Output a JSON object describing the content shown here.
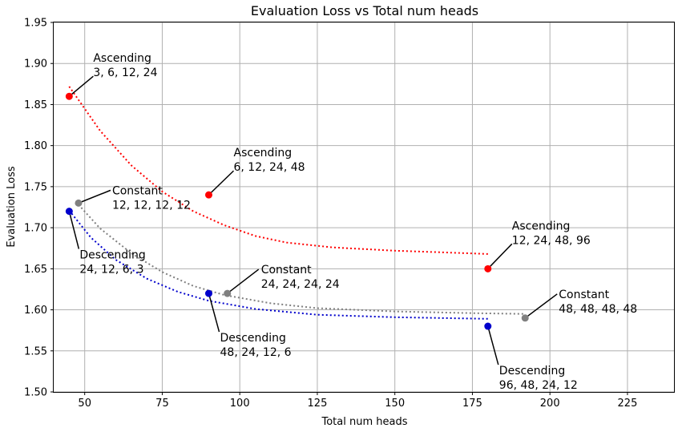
{
  "chart_data": {
    "type": "scatter",
    "title": "Evaluation Loss vs Total num heads",
    "xlabel": "Total num heads",
    "ylabel": "Evaluation Loss",
    "xlim": [
      40,
      240
    ],
    "ylim": [
      1.5,
      1.95
    ],
    "xticks": [
      50,
      75,
      100,
      125,
      150,
      175,
      200,
      225
    ],
    "yticks": [
      1.5,
      1.55,
      1.6,
      1.65,
      1.7,
      1.75,
      1.8,
      1.85,
      1.9,
      1.95
    ],
    "grid": true,
    "series": [
      {
        "color": "#ff0000",
        "points": [
          {
            "x": 45,
            "y": 1.86,
            "label": [
              "Ascending",
              "3, 6, 12, 24"
            ]
          },
          {
            "x": 90,
            "y": 1.74,
            "label": [
              "Ascending",
              "6, 12, 24, 48"
            ]
          },
          {
            "x": 180,
            "y": 1.65,
            "label": [
              "Ascending",
              "12, 24, 48, 96"
            ]
          }
        ],
        "fit": [
          {
            "x": 45,
            "y": 1.872
          },
          {
            "x": 55,
            "y": 1.818
          },
          {
            "x": 65,
            "y": 1.776
          },
          {
            "x": 75,
            "y": 1.744
          },
          {
            "x": 85,
            "y": 1.72
          },
          {
            "x": 95,
            "y": 1.703
          },
          {
            "x": 105,
            "y": 1.69
          },
          {
            "x": 115,
            "y": 1.682
          },
          {
            "x": 130,
            "y": 1.676
          },
          {
            "x": 150,
            "y": 1.672
          },
          {
            "x": 165,
            "y": 1.67
          },
          {
            "x": 180,
            "y": 1.668
          }
        ]
      },
      {
        "color": "#808080",
        "points": [
          {
            "x": 48,
            "y": 1.73,
            "label": [
              "Constant",
              "12, 12, 12, 12"
            ]
          },
          {
            "x": 96,
            "y": 1.62,
            "label": [
              "Constant",
              "24, 24, 24, 24"
            ]
          },
          {
            "x": 192,
            "y": 1.59,
            "label": [
              "Constant",
              "48, 48, 48, 48"
            ]
          }
        ],
        "fit": [
          {
            "x": 48,
            "y": 1.728
          },
          {
            "x": 55,
            "y": 1.699
          },
          {
            "x": 65,
            "y": 1.669
          },
          {
            "x": 75,
            "y": 1.646
          },
          {
            "x": 85,
            "y": 1.629
          },
          {
            "x": 95,
            "y": 1.618
          },
          {
            "x": 110,
            "y": 1.608
          },
          {
            "x": 125,
            "y": 1.602
          },
          {
            "x": 150,
            "y": 1.598
          },
          {
            "x": 175,
            "y": 1.596
          },
          {
            "x": 192,
            "y": 1.595
          }
        ]
      },
      {
        "color": "#0000cc",
        "points": [
          {
            "x": 45,
            "y": 1.72,
            "label": [
              "Descending",
              "24, 12, 6, 3"
            ]
          },
          {
            "x": 90,
            "y": 1.62,
            "label": [
              "Descending",
              "48, 24, 12, 6"
            ]
          },
          {
            "x": 180,
            "y": 1.58,
            "label": [
              "Descending",
              "96, 48, 24, 12"
            ]
          }
        ],
        "fit": [
          {
            "x": 45,
            "y": 1.721
          },
          {
            "x": 52,
            "y": 1.688
          },
          {
            "x": 60,
            "y": 1.661
          },
          {
            "x": 70,
            "y": 1.638
          },
          {
            "x": 80,
            "y": 1.622
          },
          {
            "x": 90,
            "y": 1.611
          },
          {
            "x": 105,
            "y": 1.601
          },
          {
            "x": 125,
            "y": 1.594
          },
          {
            "x": 150,
            "y": 1.591
          },
          {
            "x": 180,
            "y": 1.589
          }
        ]
      }
    ]
  }
}
